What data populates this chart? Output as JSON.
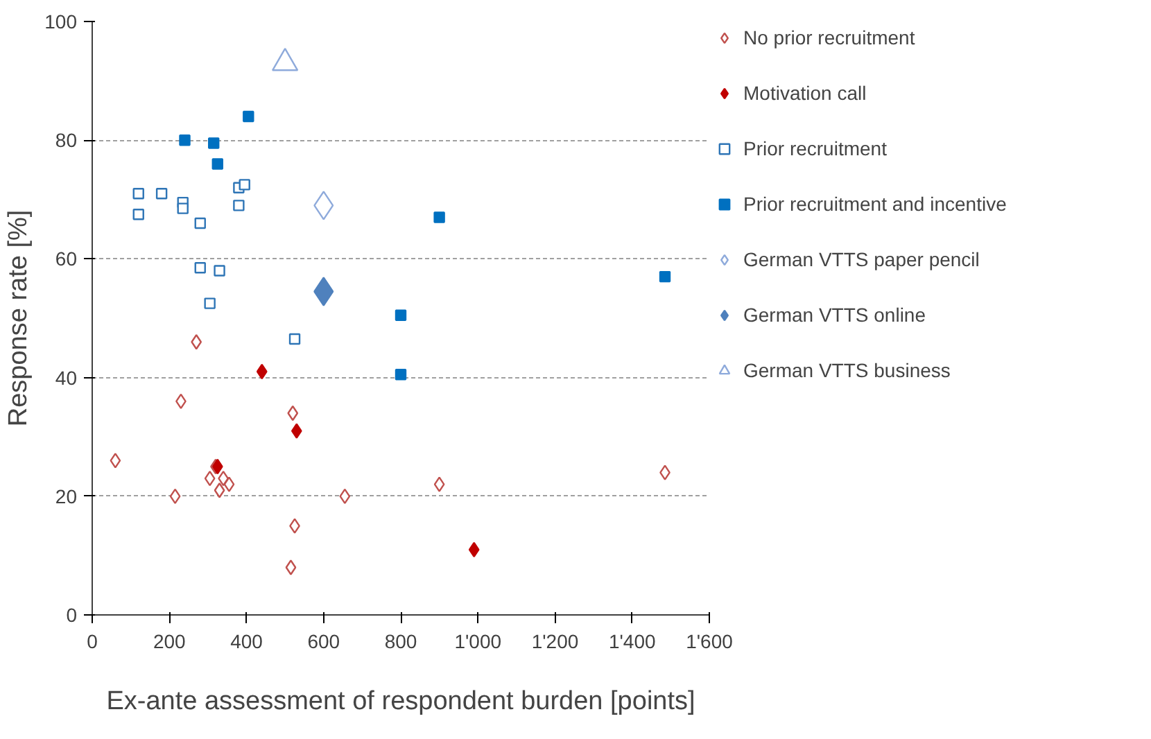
{
  "chart_data": {
    "type": "scatter",
    "xlabel": "Ex-ante assessment of respondent burden [points]",
    "ylabel": "Response rate [%]",
    "xlim": [
      0,
      1600
    ],
    "ylim": [
      0,
      100
    ],
    "xticks": [
      0,
      200,
      400,
      600,
      800,
      {
        "value": 1000,
        "label": "1'000"
      },
      {
        "value": 1200,
        "label": "1'200"
      },
      {
        "value": 1400,
        "label": "1'400"
      },
      {
        "value": 1600,
        "label": "1'600"
      }
    ],
    "yticks": [
      0,
      20,
      40,
      60,
      80,
      100
    ],
    "grid": "y",
    "legend": "right",
    "series": [
      {
        "name": "No prior recruitment",
        "color": "#c0504d",
        "marker": "diamond",
        "x": [
          60,
          230,
          270,
          215,
          305,
          320,
          330,
          340,
          355,
          520,
          525,
          515,
          655,
          900,
          1485
        ],
        "values": [
          26,
          36,
          46,
          20,
          23,
          25,
          21,
          23,
          22,
          34,
          15,
          8,
          20,
          22,
          24
        ]
      },
      {
        "name": "Motivation call",
        "color": "#c00000",
        "marker": "diamond",
        "x": [
          440,
          325,
          530,
          990
        ],
        "values": [
          41,
          25,
          31,
          11
        ]
      },
      {
        "name": "Prior recruitment",
        "color": "#2e75b6",
        "marker": "square",
        "x": [
          120,
          120,
          180,
          235,
          235,
          280,
          380,
          395,
          380,
          280,
          330,
          305,
          525
        ],
        "values": [
          71,
          67.5,
          71,
          69.5,
          68.5,
          66,
          72,
          72.5,
          69,
          58.5,
          58,
          52.5,
          46.5
        ]
      },
      {
        "name": "Prior recruitment and incentive",
        "color": "#0070c0",
        "marker": "square",
        "x": [
          240,
          315,
          325,
          405,
          900,
          1485,
          800,
          800
        ],
        "values": [
          80,
          79.5,
          76,
          84,
          67,
          57,
          50.5,
          40.5
        ]
      },
      {
        "name": "German VTTS paper pencil",
        "color": "#8eaadb",
        "marker": "diamond",
        "x": [
          600
        ],
        "values": [
          69
        ]
      },
      {
        "name": "German VTTS online",
        "color": "#4f81bd",
        "marker": "diamond",
        "x": [
          600
        ],
        "values": [
          54.5
        ]
      },
      {
        "name": "German VTTS business",
        "color": "#8eaadb",
        "marker": "triangle",
        "x": [
          500
        ],
        "values": [
          93
        ]
      }
    ]
  }
}
